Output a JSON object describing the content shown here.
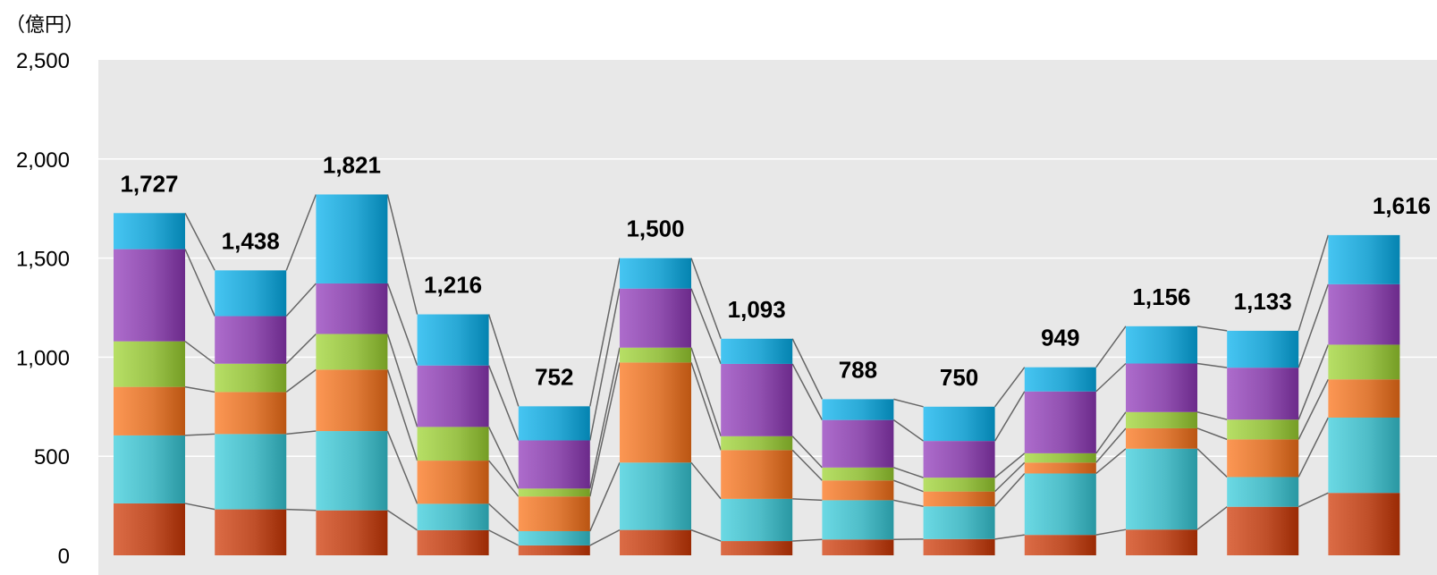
{
  "chart_data": {
    "type": "bar",
    "stacked": true,
    "unit_label": "（億円）",
    "ylim": [
      0,
      2500
    ],
    "y_ticks": [
      {
        "value": 0,
        "label": "0"
      },
      {
        "value": 500,
        "label": "500"
      },
      {
        "value": 1000,
        "label": "1,000"
      },
      {
        "value": 1500,
        "label": "1,500"
      },
      {
        "value": 2000,
        "label": "2,000"
      },
      {
        "value": 2500,
        "label": "2,500"
      }
    ],
    "grid": true,
    "categories": [
      "",
      "",
      "",
      "",
      "",
      "",
      "",
      "",
      "",
      "",
      "",
      "",
      ""
    ],
    "totals": [
      1727,
      1438,
      1821,
      1216,
      752,
      1500,
      1093,
      788,
      750,
      949,
      1156,
      1133,
      1616
    ],
    "total_labels": [
      "1,727",
      "1,438",
      "1,821",
      "1,216",
      "752",
      "1,500",
      "1,093",
      "788",
      "750",
      "949",
      "1,156",
      "1,133",
      "1,616"
    ],
    "series": [
      {
        "color": "#c0502a",
        "values": [
          262,
          232,
          227,
          127,
          50,
          128,
          72,
          80,
          82,
          103,
          130,
          245,
          315
        ]
      },
      {
        "color": "#4fbdc8",
        "values": [
          343,
          380,
          400,
          133,
          72,
          340,
          213,
          198,
          165,
          310,
          408,
          150,
          380
        ]
      },
      {
        "color": "#e07b38",
        "values": [
          245,
          212,
          310,
          218,
          175,
          505,
          246,
          100,
          75,
          55,
          103,
          190,
          193
        ]
      },
      {
        "color": "#9bc34a",
        "values": [
          230,
          143,
          180,
          170,
          40,
          75,
          70,
          65,
          70,
          47,
          82,
          100,
          175
        ]
      },
      {
        "color": "#9150b0",
        "values": [
          465,
          240,
          255,
          310,
          243,
          298,
          365,
          240,
          185,
          312,
          245,
          262,
          305
        ]
      },
      {
        "color": "#2aa9d6",
        "values": [
          182,
          231,
          449,
          258,
          172,
          154,
          127,
          105,
          173,
          122,
          188,
          186,
          248
        ]
      }
    ]
  }
}
